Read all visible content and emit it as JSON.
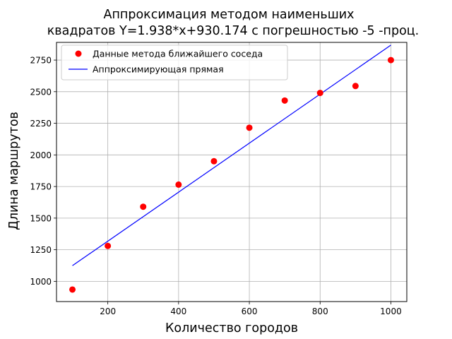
{
  "chart_data": {
    "type": "scatter",
    "title_line1": "Аппроксимация методом наименьших",
    "title_line2": "квадратов Y=1.938*x+930.174 с погрешностью  -5 -проц.",
    "xlabel": "Количество  городов",
    "ylabel": "Длина маршрутов",
    "xlim": [
      55,
      1045
    ],
    "ylim": [
      840,
      2890
    ],
    "xticks": [
      200,
      400,
      600,
      800,
      1000
    ],
    "yticks": [
      1000,
      1250,
      1500,
      1750,
      2000,
      2250,
      2500,
      2750
    ],
    "grid": true,
    "legend_position": "top-left",
    "series": [
      {
        "name": "Данные метода ближайшего соседа",
        "kind": "points",
        "color": "#ff0000",
        "x": [
          100,
          200,
          300,
          400,
          500,
          600,
          700,
          800,
          900,
          1000
        ],
        "y": [
          935,
          1280,
          1590,
          1765,
          1950,
          2215,
          2430,
          2490,
          2545,
          2750
        ]
      },
      {
        "name": "Аппроксимирующая прямая",
        "kind": "line",
        "color": "#0000ff",
        "slope": 1.938,
        "intercept": 930.174,
        "x": [
          100,
          1000
        ]
      }
    ]
  }
}
